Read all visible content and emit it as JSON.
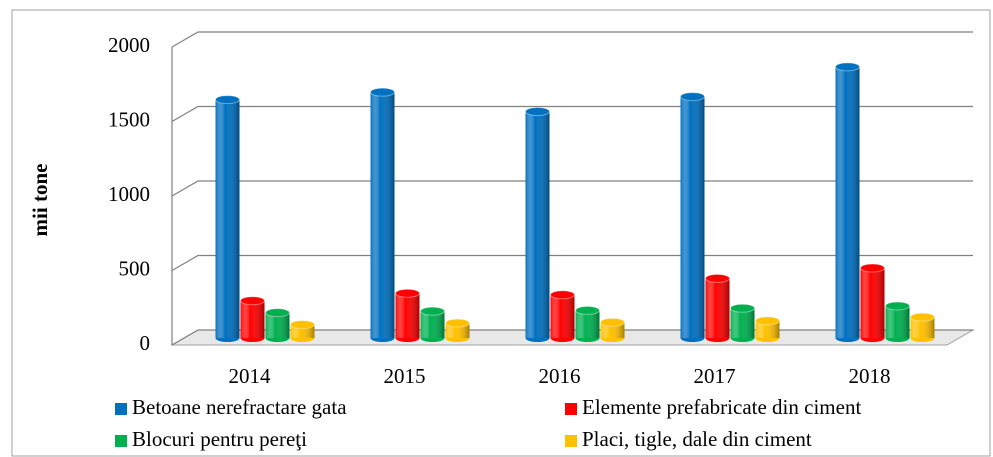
{
  "chart_data": {
    "type": "bar3d",
    "y_label": "mii tone",
    "categories": [
      "2014",
      "2015",
      "2016",
      "2017",
      "2018"
    ],
    "series": [
      {
        "name": "Betoane nerefractare gata",
        "color": "#0070c0",
        "values": [
          1600,
          1650,
          1520,
          1620,
          1820
        ]
      },
      {
        "name": "Elemente prefabricate din ciment",
        "color": "#ff0000",
        "values": [
          250,
          300,
          290,
          400,
          470
        ]
      },
      {
        "name": "Blocuri pentru pereţi",
        "color": "#00b050",
        "values": [
          170,
          180,
          185,
          200,
          215
        ]
      },
      {
        "name": "Placi, tigle, dale din ciment",
        "color": "#ffc000",
        "values": [
          90,
          100,
          105,
          115,
          140
        ]
      }
    ],
    "ylim": [
      0,
      2000
    ],
    "yticks": [
      0,
      500,
      1000,
      1500,
      2000
    ],
    "grid": true
  }
}
